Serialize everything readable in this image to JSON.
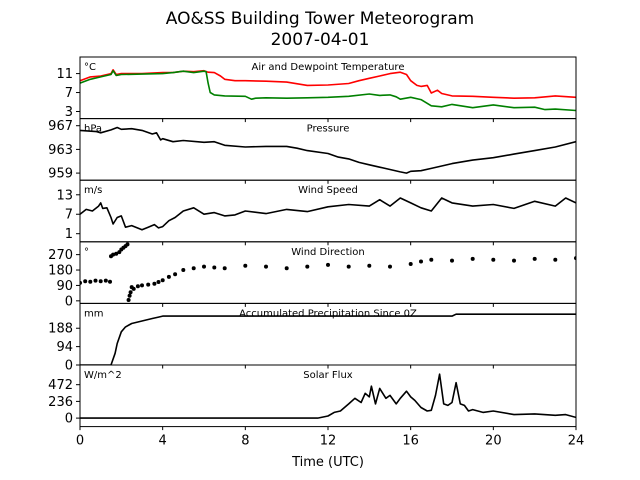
{
  "figure": {
    "title_line1": "AO&SS Building Tower Meteorogram",
    "title_line2": "2007-04-01",
    "xlabel": "Time (UTC)",
    "xticks": [
      0,
      4,
      8,
      12,
      16,
      20,
      24
    ],
    "xlim": [
      0,
      24
    ]
  },
  "colors": {
    "temperature": "#ff0000",
    "dewpoint": "#008000",
    "default_line": "#000000"
  },
  "chart_data": [
    {
      "type": "line",
      "title": "Air and Dewpoint Temperature",
      "unit": "°C",
      "ylim": [
        1.5,
        14.5
      ],
      "yticks": [
        3,
        7,
        11
      ],
      "series": [
        {
          "color_key": "temperature",
          "x": [
            0,
            0.5,
            1,
            1.5,
            1.6,
            1.75,
            2,
            3,
            4,
            4.5,
            5,
            5.5,
            6,
            6.2,
            6.5,
            6.8,
            7,
            7.5,
            8,
            9,
            10,
            11,
            12,
            13,
            13.5,
            14,
            14.5,
            15,
            15.5,
            15.8,
            16,
            16.3,
            16.5,
            16.8,
            17,
            17.3,
            17.5,
            18,
            19,
            20,
            21,
            22,
            23,
            24
          ],
          "y": [
            9.5,
            10.3,
            10.5,
            11,
            11.8,
            10.8,
            11,
            11,
            11.2,
            11.2,
            11.5,
            11.4,
            11.6,
            11.3,
            11.2,
            10.5,
            9.8,
            9.5,
            9.5,
            9.4,
            9.2,
            8.5,
            8.6,
            8.9,
            9.5,
            10,
            10.5,
            11,
            11.3,
            10.8,
            9.5,
            8.5,
            8.3,
            8.5,
            6.9,
            7.5,
            6.8,
            6.3,
            6.2,
            6,
            5.8,
            5.9,
            6.3,
            6
          ]
        },
        {
          "color_key": "dewpoint",
          "x": [
            0,
            0.5,
            1,
            1.5,
            1.6,
            1.75,
            2,
            3,
            4,
            4.5,
            5,
            5.5,
            6,
            6.1,
            6.2,
            6.3,
            6.5,
            7,
            8,
            8.3,
            8.5,
            9,
            10,
            11,
            12,
            13,
            14,
            14.5,
            15,
            15.3,
            15.5,
            16,
            16.5,
            17,
            17.5,
            18,
            19,
            20,
            21,
            22,
            22.5,
            23,
            24
          ],
          "y": [
            9,
            9.8,
            10.3,
            10.8,
            11.6,
            10.6,
            10.8,
            10.9,
            11,
            11.2,
            11.5,
            11.2,
            11.5,
            11.4,
            9,
            7,
            6.5,
            6.3,
            6.2,
            5.6,
            5.8,
            5.9,
            5.8,
            5.9,
            6,
            6.2,
            6.7,
            6.4,
            6.5,
            6.1,
            5.6,
            6,
            5.5,
            4.2,
            4,
            4.5,
            3.8,
            4.4,
            3.8,
            3.9,
            3.4,
            3.5,
            3.2
          ]
        }
      ]
    },
    {
      "type": "line",
      "title": "Pressure",
      "unit": "hPa",
      "ylim": [
        957.8,
        968.2
      ],
      "yticks": [
        959,
        963,
        967
      ],
      "series": [
        {
          "color_key": "default_line",
          "x": [
            0,
            0.8,
            1,
            1.5,
            1.8,
            2,
            2.5,
            3,
            3.5,
            3.7,
            3.9,
            4,
            4.5,
            5,
            6,
            6.5,
            7,
            8,
            9,
            10,
            10.5,
            11,
            12,
            12.5,
            13,
            13.5,
            14,
            14.5,
            15,
            15.5,
            15.8,
            16,
            16.5,
            17,
            17.5,
            18,
            18.5,
            19,
            20,
            21,
            22,
            23,
            24
          ],
          "y": [
            966.2,
            966,
            965.8,
            966.3,
            966.7,
            966.4,
            966.5,
            966.2,
            965.6,
            965.8,
            964.6,
            964.8,
            964.3,
            964.5,
            964.2,
            964.3,
            963.7,
            963.4,
            963.5,
            963.5,
            963.2,
            962.8,
            962.3,
            961.7,
            961.4,
            960.8,
            960.4,
            960,
            959.6,
            959.2,
            959,
            959.3,
            959.4,
            959.8,
            960.2,
            960.6,
            960.9,
            961.2,
            961.6,
            962.2,
            962.8,
            963.4,
            964.3
          ]
        }
      ]
    },
    {
      "type": "line",
      "title": "Wind Speed",
      "unit": "m/s",
      "ylim": [
        -1.5,
        17.5
      ],
      "yticks": [
        1,
        7,
        13
      ],
      "series": [
        {
          "color_key": "default_line",
          "x": [
            0,
            0.3,
            0.6,
            0.9,
            1,
            1.1,
            1.3,
            1.5,
            1.6,
            1.8,
            2,
            2.2,
            2.5,
            3,
            3.3,
            3.6,
            3.8,
            4,
            4.3,
            4.6,
            5,
            5.5,
            6,
            6.5,
            7,
            7.5,
            8,
            9,
            10,
            11,
            12,
            13,
            14,
            14.5,
            15,
            15.5,
            16,
            16.5,
            17,
            17.5,
            18,
            19,
            20,
            21,
            22,
            23,
            23.5,
            24
          ],
          "y": [
            7,
            8.5,
            8,
            9.5,
            10.5,
            8.8,
            9,
            6,
            4,
            6,
            6.5,
            3,
            3.5,
            2.2,
            3,
            3.8,
            2.8,
            3.2,
            5,
            6,
            8,
            9,
            7,
            7.5,
            6.5,
            6.8,
            8,
            7.2,
            8.5,
            7.8,
            9.3,
            10,
            9.5,
            11.5,
            9.5,
            12,
            10.5,
            9,
            8,
            12,
            10.5,
            9.5,
            10,
            8.8,
            11,
            9.5,
            12,
            10.5
          ]
        }
      ]
    },
    {
      "type": "scatter",
      "title": "Wind Direction",
      "unit": "°",
      "ylim": [
        -15,
        345
      ],
      "yticks": [
        0,
        90,
        180,
        270
      ],
      "series": [
        {
          "color_key": "default_line",
          "mode": "dots",
          "x": [
            0,
            0.25,
            0.5,
            0.75,
            1,
            1.25,
            1.45,
            1.5,
            1.6,
            1.75,
            1.9,
            2,
            2.1,
            2.2,
            2.3,
            2.35,
            2.4,
            2.45,
            2.5,
            2.6,
            2.8,
            3,
            3.3,
            3.6,
            3.8,
            4,
            4.3,
            4.6,
            5,
            5.5,
            6,
            6.5,
            7,
            8,
            9,
            10,
            11,
            12,
            13,
            14,
            15,
            16,
            16.5,
            17,
            18,
            19,
            20,
            21,
            22,
            23,
            24
          ],
          "y": [
            105,
            115,
            112,
            118,
            115,
            118,
            112,
            260,
            270,
            275,
            285,
            300,
            310,
            320,
            330,
            5,
            30,
            50,
            80,
            70,
            85,
            90,
            95,
            100,
            110,
            120,
            140,
            155,
            180,
            190,
            200,
            195,
            190,
            205,
            200,
            190,
            200,
            210,
            200,
            205,
            200,
            215,
            230,
            240,
            235,
            245,
            240,
            235,
            245,
            240,
            250
          ]
        }
      ]
    },
    {
      "type": "line",
      "title": "Accumulated Precipitation Since 0Z",
      "unit": "mm",
      "ylim": [
        0,
        315
      ],
      "yticks": [
        0,
        94,
        188
      ],
      "series": [
        {
          "color_key": "default_line",
          "x": [
            0,
            1.5,
            1.7,
            1.8,
            2,
            2.2,
            2.5,
            3,
            3.5,
            3.8,
            4,
            18,
            18.2,
            24
          ],
          "y": [
            0,
            0,
            60,
            110,
            170,
            195,
            212,
            225,
            238,
            245,
            250,
            250,
            260,
            260
          ]
        }
      ]
    },
    {
      "type": "line",
      "title": "Solar Flux",
      "unit": "W/m^2",
      "ylim": [
        -120,
        750
      ],
      "yticks": [
        0,
        236,
        472
      ],
      "series": [
        {
          "color_key": "default_line",
          "x": [
            0,
            11.5,
            12,
            12.3,
            12.6,
            13,
            13.3,
            13.6,
            13.8,
            14,
            14.1,
            14.3,
            14.5,
            14.8,
            15,
            15.3,
            15.5,
            15.8,
            16,
            16.2,
            16.5,
            16.8,
            17,
            17.2,
            17.4,
            17.6,
            17.8,
            18,
            18.2,
            18.4,
            18.6,
            18.8,
            19,
            19.5,
            20,
            21,
            22,
            23,
            23.5,
            24
          ],
          "y": [
            0,
            0,
            30,
            80,
            100,
            200,
            280,
            220,
            350,
            300,
            450,
            200,
            420,
            280,
            320,
            200,
            280,
            380,
            300,
            250,
            150,
            100,
            110,
            320,
            620,
            200,
            180,
            220,
            500,
            200,
            180,
            100,
            120,
            80,
            100,
            50,
            60,
            40,
            50,
            10
          ]
        }
      ]
    }
  ]
}
